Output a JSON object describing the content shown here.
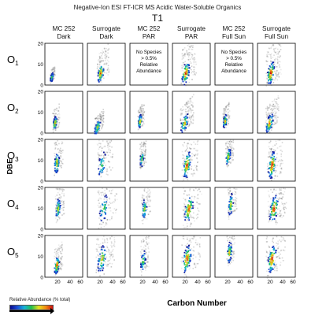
{
  "title": "Negative-Ion ESI FT-ICR MS Acidic Water-Soluble Organics",
  "subtitle": "T1",
  "columns": [
    [
      "MC 252",
      "Dark"
    ],
    [
      "Surrogate",
      "Dark"
    ],
    [
      "MC 252",
      "PAR"
    ],
    [
      "Surrogate",
      "PAR"
    ],
    [
      "MC 252",
      "Full Sun"
    ],
    [
      "Surrogate",
      "Full Sun"
    ]
  ],
  "rows": [
    {
      "base": "O",
      "sub": "1"
    },
    {
      "base": "O",
      "sub": "2"
    },
    {
      "base": "O",
      "sub": "3"
    },
    {
      "base": "O",
      "sub": "4"
    },
    {
      "base": "O",
      "sub": "5"
    }
  ],
  "ylabel": "DBE",
  "xlabel": "Carbon Number",
  "legend_label": "Relative Abundance (% total)",
  "no_species_note": [
    "No Species",
    "> 0.5%",
    "Relative",
    "Abundance"
  ],
  "colors": {
    "colormap": [
      "#0a0a8c",
      "#1c4fd8",
      "#14b4d8",
      "#22c04a",
      "#e8e020",
      "#f08a10",
      "#d01010"
    ],
    "shadow": "#555555"
  },
  "chart_data": {
    "type": "heatmap",
    "layout": "small-multiples 5 rows x 6 columns",
    "x_axis": {
      "label": "Carbon Number",
      "range": [
        0,
        60
      ],
      "ticks": [
        20,
        40,
        60
      ]
    },
    "y_axis": {
      "label": "DBE",
      "range": [
        0,
        20
      ],
      "ticks": [
        0,
        10,
        20
      ]
    },
    "empty_panels": [
      [
        0,
        2
      ],
      [
        0,
        4
      ]
    ],
    "panels": [
      [
        {
          "col": 0,
          "cx": 10,
          "cy": 4,
          "sx": 2.5,
          "sy": 2,
          "spread": 0.45,
          "color": 0.35,
          "shadow": 0.2
        },
        {
          "col": 1,
          "cx": 20,
          "cy": 6,
          "sx": 5,
          "sy": 4,
          "spread": 0.7,
          "color": 0.85,
          "shadow": 0.6
        },
        {
          "col": 2,
          "empty": true
        },
        {
          "col": 3,
          "cx": 20,
          "cy": 6,
          "sx": 6,
          "sy": 5,
          "spread": 0.75,
          "color": 0.9,
          "shadow": 0.8
        },
        {
          "col": 4,
          "empty": true
        },
        {
          "col": 5,
          "cx": 20,
          "cy": 6,
          "sx": 6,
          "sy": 5,
          "spread": 0.75,
          "color": 0.95,
          "shadow": 0.85
        }
      ],
      [
        {
          "col": 0,
          "cx": 15,
          "cy": 5,
          "sx": 3,
          "sy": 3,
          "spread": 0.6,
          "color": 0.7,
          "shadow": 0.3
        },
        {
          "col": 1,
          "cx": 15,
          "cy": 3,
          "sx": 5,
          "sy": 3,
          "spread": 0.4,
          "color": 0.55,
          "shadow": 0.7
        },
        {
          "col": 2,
          "cx": 15,
          "cy": 6,
          "sx": 3,
          "sy": 3,
          "spread": 0.6,
          "color": 0.65,
          "shadow": 0.4
        },
        {
          "col": 3,
          "cx": 18,
          "cy": 5,
          "sx": 6,
          "sy": 4,
          "spread": 0.6,
          "color": 0.6,
          "shadow": 0.8
        },
        {
          "col": 4,
          "cx": 15,
          "cy": 6,
          "sx": 3,
          "sy": 3,
          "spread": 0.6,
          "color": 0.7,
          "shadow": 0.4
        },
        {
          "col": 5,
          "cx": 18,
          "cy": 5,
          "sx": 6,
          "sy": 4,
          "spread": 0.6,
          "color": 0.75,
          "shadow": 0.8
        }
      ],
      [
        {
          "col": 0,
          "cx": 18,
          "cy": 9,
          "sx": 4,
          "sy": 5,
          "spread": 0.6,
          "color": 0.7,
          "shadow": 0.4
        },
        {
          "col": 1,
          "cx": 22,
          "cy": 8,
          "sx": 6,
          "sy": 6,
          "spread": 0.8,
          "color": 0.3,
          "shadow": 0.8
        },
        {
          "col": 2,
          "cx": 18,
          "cy": 11,
          "sx": 3,
          "sy": 4,
          "spread": 0.5,
          "color": 0.4,
          "shadow": 0.5
        },
        {
          "col": 3,
          "cx": 22,
          "cy": 8,
          "sx": 6,
          "sy": 6,
          "spread": 0.8,
          "color": 0.85,
          "shadow": 0.85
        },
        {
          "col": 4,
          "cx": 20,
          "cy": 12,
          "sx": 4,
          "sy": 4,
          "spread": 0.5,
          "color": 0.5,
          "shadow": 0.5
        },
        {
          "col": 5,
          "cx": 22,
          "cy": 8,
          "sx": 6,
          "sy": 6,
          "spread": 0.8,
          "color": 0.95,
          "shadow": 0.85
        }
      ],
      [
        {
          "col": 0,
          "cx": 20,
          "cy": 10,
          "sx": 4,
          "sy": 5,
          "spread": 0.6,
          "color": 0.5,
          "shadow": 0.5
        },
        {
          "col": 1,
          "cx": 25,
          "cy": 10,
          "sx": 7,
          "sy": 6,
          "spread": 0.85,
          "color": 0.35,
          "shadow": 0.85
        },
        {
          "col": 2,
          "cx": 22,
          "cy": 10,
          "sx": 4,
          "sy": 5,
          "spread": 0.6,
          "color": 0.4,
          "shadow": 0.5
        },
        {
          "col": 3,
          "cx": 25,
          "cy": 10,
          "sx": 7,
          "sy": 6,
          "spread": 0.85,
          "color": 0.85,
          "shadow": 0.85
        },
        {
          "col": 4,
          "cx": 24,
          "cy": 12,
          "sx": 4,
          "sy": 5,
          "spread": 0.6,
          "color": 0.5,
          "shadow": 0.5
        },
        {
          "col": 5,
          "cx": 25,
          "cy": 10,
          "sx": 7,
          "sy": 6,
          "spread": 0.85,
          "color": 0.95,
          "shadow": 0.9
        }
      ],
      [
        {
          "col": 0,
          "cx": 18,
          "cy": 6,
          "sx": 4,
          "sy": 4,
          "spread": 0.55,
          "color": 0.85,
          "shadow": 0.5
        },
        {
          "col": 1,
          "cx": 22,
          "cy": 9,
          "sx": 7,
          "sy": 6,
          "spread": 0.85,
          "color": 0.6,
          "shadow": 0.85
        },
        {
          "col": 2,
          "cx": 20,
          "cy": 8,
          "sx": 4,
          "sy": 5,
          "spread": 0.55,
          "color": 0.4,
          "shadow": 0.4
        },
        {
          "col": 3,
          "cx": 22,
          "cy": 9,
          "sx": 7,
          "sy": 6,
          "spread": 0.85,
          "color": 0.9,
          "shadow": 0.85
        },
        {
          "col": 4,
          "cx": 22,
          "cy": 12,
          "sx": 4,
          "sy": 5,
          "spread": 0.55,
          "color": 0.6,
          "shadow": 0.5
        },
        {
          "col": 5,
          "cx": 22,
          "cy": 9,
          "sx": 7,
          "sy": 6,
          "spread": 0.85,
          "color": 0.95,
          "shadow": 0.9
        }
      ]
    ]
  }
}
